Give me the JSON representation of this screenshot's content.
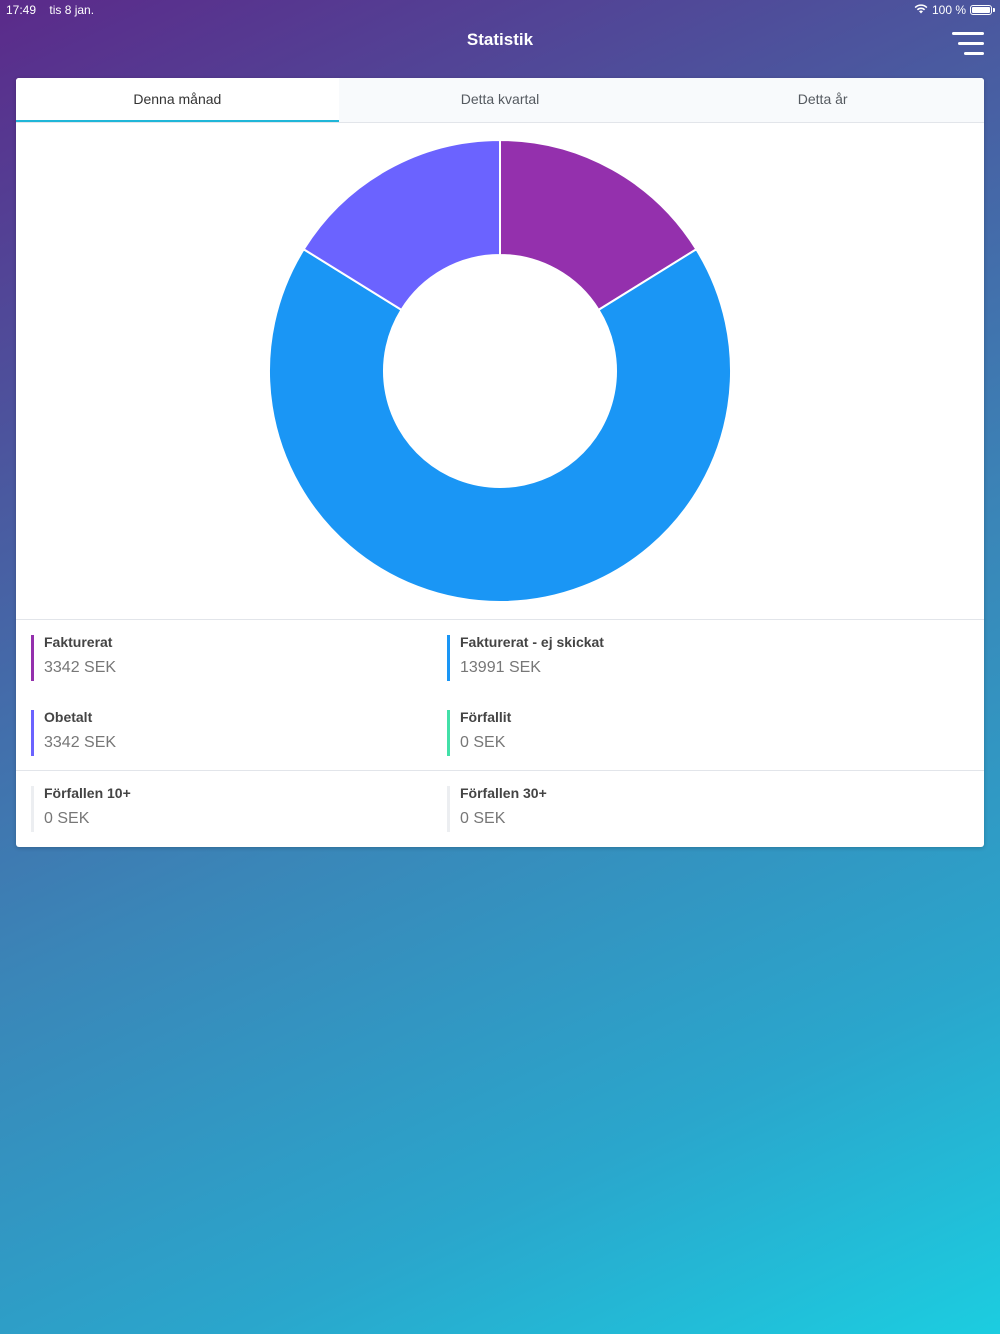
{
  "status_bar": {
    "time": "17:49",
    "date": "tis 8 jan.",
    "battery": "100 %",
    "battery_level": 1.0
  },
  "nav": {
    "title": "Statistik"
  },
  "tabs": [
    {
      "label": "Denna månad",
      "active": true
    },
    {
      "label": "Detta kvartal",
      "active": false
    },
    {
      "label": "Detta år",
      "active": false
    }
  ],
  "chart_data": {
    "type": "pie",
    "donut": true,
    "categories": [
      "Fakturerat",
      "Fakturerat - ej skickat",
      "Obetalt",
      "Förfallit"
    ],
    "values": [
      3342,
      13991,
      3342,
      0
    ],
    "colors": [
      "#9430ad",
      "#1a96f5",
      "#6b63ff",
      "#42e0a8"
    ]
  },
  "legend": [
    {
      "label": "Fakturerat",
      "value": "3342 SEK",
      "color": "#9430ad"
    },
    {
      "label": "Fakturerat - ej skickat",
      "value": "13991 SEK",
      "color": "#1a96f5"
    },
    {
      "label": "Obetalt",
      "value": "3342 SEK",
      "color": "#6b63ff"
    },
    {
      "label": "Förfallit",
      "value": "0 SEK",
      "color": "#42e0a8"
    }
  ],
  "overdue": [
    {
      "label": "Förfallen 10+",
      "value": "0 SEK",
      "color": "#eceef1"
    },
    {
      "label": "Förfallen 30+",
      "value": "0 SEK",
      "color": "#eceef1"
    }
  ]
}
